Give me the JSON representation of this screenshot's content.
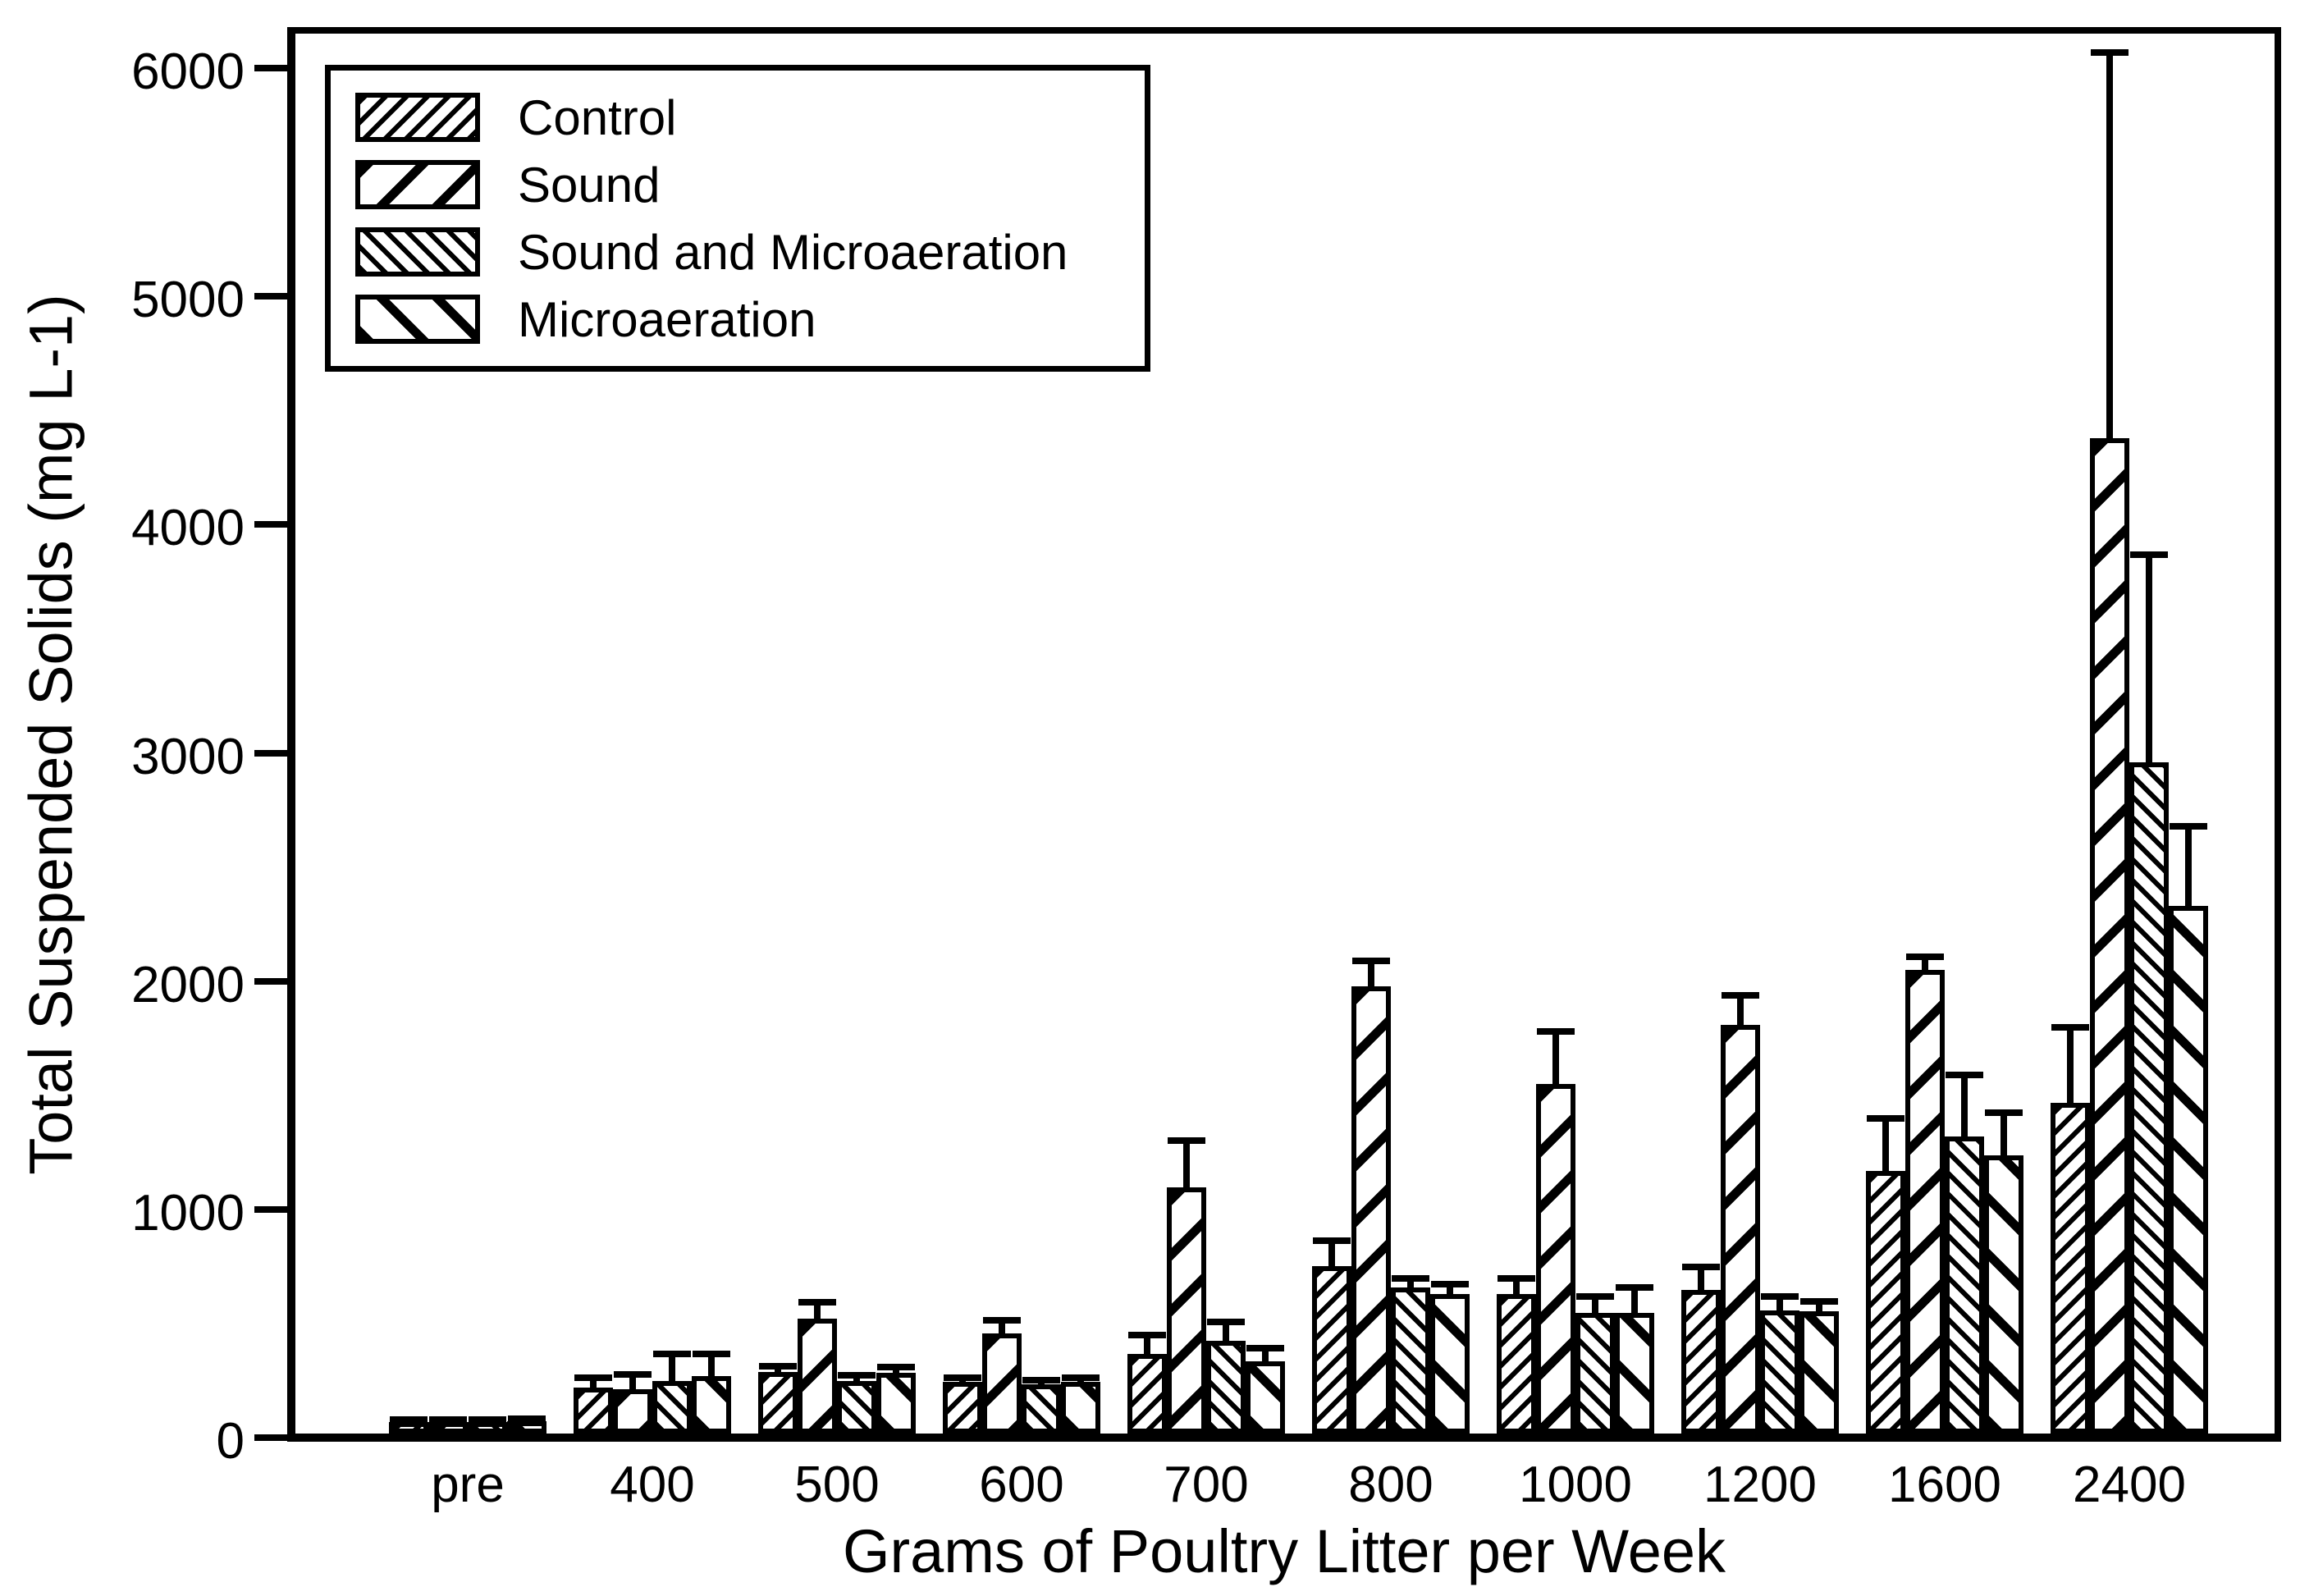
{
  "figure": {
    "background": "#ffffff",
    "ink": "#000000"
  },
  "chart_data": {
    "type": "bar",
    "title": "",
    "xlabel": "Grams of Poultry Litter per Week",
    "ylabel": "Total Suspended Solids (mg L-1)",
    "categories": [
      "pre",
      "400",
      "500",
      "600",
      "700",
      "800",
      "1000",
      "1200",
      "1600",
      "2400"
    ],
    "yticks": [
      0,
      1000,
      2000,
      3000,
      4000,
      5000,
      6000
    ],
    "ylim": [
      0,
      6200
    ],
    "grid": false,
    "legend_position": "upper-left-inside",
    "error_bars": "upper-only",
    "series": [
      {
        "name": "Control",
        "hatch": "dense-forward-slash",
        "values": [
          50,
          200,
          270,
          225,
          350,
          735,
          610,
          630,
          1150,
          1450
        ],
        "errors_plus": [
          10,
          45,
          25,
          20,
          80,
          110,
          70,
          100,
          230,
          330
        ]
      },
      {
        "name": "Sound",
        "hatch": "wide-forward-slash",
        "values": [
          50,
          195,
          505,
          440,
          1080,
          1960,
          1530,
          1790,
          2030,
          4360
        ],
        "errors_plus": [
          10,
          65,
          70,
          55,
          205,
          110,
          230,
          130,
          60,
          1690
        ]
      },
      {
        "name": "Sound and Microaeration",
        "hatch": "dense-back-slash",
        "values": [
          50,
          230,
          230,
          215,
          405,
          640,
          530,
          540,
          1300,
          2940
        ],
        "errors_plus": [
          10,
          120,
          25,
          20,
          85,
          40,
          70,
          60,
          270,
          910
        ]
      },
      {
        "name": "Microaeration",
        "hatch": "wide-back-slash",
        "values": [
          55,
          250,
          265,
          225,
          315,
          610,
          530,
          535,
          1220,
          2310
        ],
        "errors_plus": [
          10,
          100,
          25,
          20,
          60,
          45,
          110,
          45,
          185,
          350
        ]
      }
    ]
  }
}
